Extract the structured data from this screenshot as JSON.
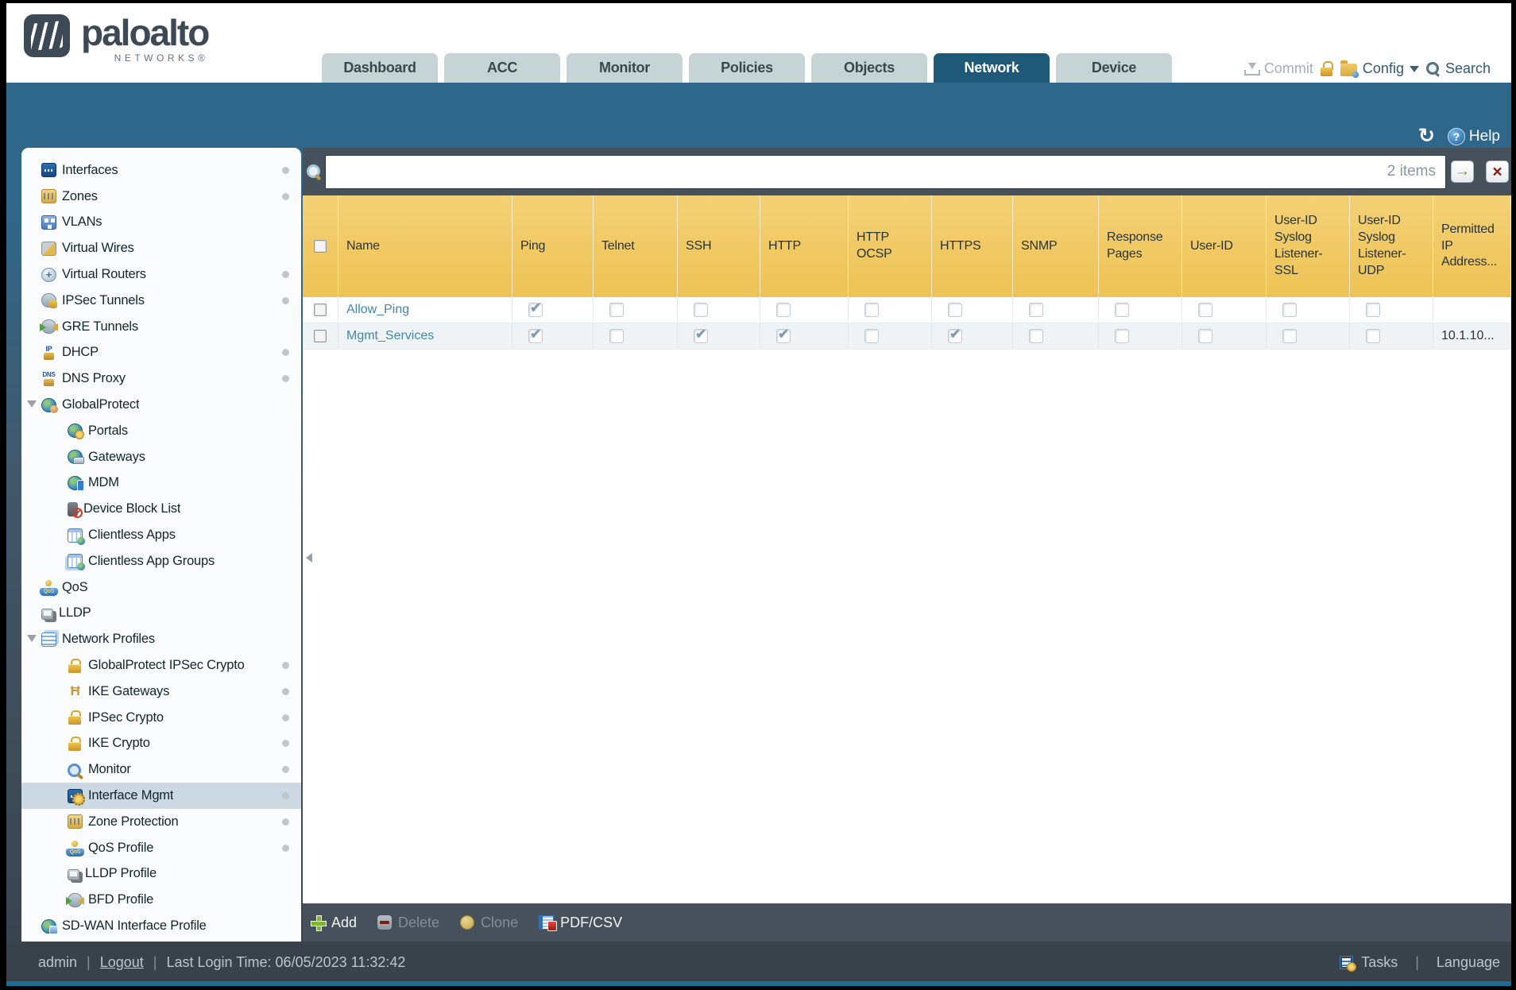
{
  "header": {
    "brand": "paloalto",
    "brand_sub": "NETWORKS®",
    "tabs": [
      {
        "label": "Dashboard",
        "active": false
      },
      {
        "label": "ACC",
        "active": false
      },
      {
        "label": "Monitor",
        "active": false
      },
      {
        "label": "Policies",
        "active": false
      },
      {
        "label": "Objects",
        "active": false
      },
      {
        "label": "Network",
        "active": true
      },
      {
        "label": "Device",
        "active": false
      }
    ],
    "utilities": {
      "commit": "Commit",
      "config": "Config",
      "search": "Search"
    }
  },
  "subheader": {
    "help": "Help"
  },
  "sidebar": {
    "items": [
      {
        "label": "Interfaces",
        "icon": "interfaces",
        "level": 0,
        "dot": true
      },
      {
        "label": "Zones",
        "icon": "zones",
        "level": 0,
        "dot": true
      },
      {
        "label": "VLANs",
        "icon": "vlans",
        "level": 0,
        "dot": false
      },
      {
        "label": "Virtual Wires",
        "icon": "virtual-wires",
        "level": 0,
        "dot": false
      },
      {
        "label": "Virtual Routers",
        "icon": "virtual-routers",
        "level": 0,
        "dot": true
      },
      {
        "label": "IPSec Tunnels",
        "icon": "ipsec-tunnels",
        "level": 0,
        "dot": true
      },
      {
        "label": "GRE Tunnels",
        "icon": "gre-tunnels",
        "level": 0,
        "dot": false
      },
      {
        "label": "DHCP",
        "icon": "dhcp",
        "level": 0,
        "dot": true
      },
      {
        "label": "DNS Proxy",
        "icon": "dns-proxy",
        "level": 0,
        "dot": true
      },
      {
        "label": "GlobalProtect",
        "icon": "globalprotect",
        "level": 0,
        "expander": true,
        "dot": false
      },
      {
        "label": "Portals",
        "icon": "portals",
        "level": 1,
        "dot": false
      },
      {
        "label": "Gateways",
        "icon": "gateways",
        "level": 1,
        "dot": false
      },
      {
        "label": "MDM",
        "icon": "mdm",
        "level": 1,
        "dot": false
      },
      {
        "label": "Device Block List",
        "icon": "device-block-list",
        "level": 1,
        "dot": false
      },
      {
        "label": "Clientless Apps",
        "icon": "clientless-apps",
        "level": 1,
        "dot": false
      },
      {
        "label": "Clientless App Groups",
        "icon": "clientless-app-groups",
        "level": 1,
        "dot": false
      },
      {
        "label": "QoS",
        "icon": "qos",
        "level": 0,
        "dot": false
      },
      {
        "label": "LLDP",
        "icon": "lldp",
        "level": 0,
        "dot": false
      },
      {
        "label": "Network Profiles",
        "icon": "network-profiles",
        "level": 0,
        "expander": true,
        "dot": false
      },
      {
        "label": "GlobalProtect IPSec Crypto",
        "icon": "lock",
        "level": 1,
        "dot": true
      },
      {
        "label": "IKE Gateways",
        "icon": "ike-gateways",
        "level": 1,
        "dot": true
      },
      {
        "label": "IPSec Crypto",
        "icon": "lock",
        "level": 1,
        "dot": true
      },
      {
        "label": "IKE Crypto",
        "icon": "lock",
        "level": 1,
        "dot": true
      },
      {
        "label": "Monitor",
        "icon": "monitor-profile",
        "level": 1,
        "dot": true
      },
      {
        "label": "Interface Mgmt",
        "icon": "interface-mgmt",
        "level": 1,
        "dot": true,
        "selected": true
      },
      {
        "label": "Zone Protection",
        "icon": "zone-protection",
        "level": 1,
        "dot": true
      },
      {
        "label": "QoS Profile",
        "icon": "qos-profile",
        "level": 1,
        "dot": true
      },
      {
        "label": "LLDP Profile",
        "icon": "lldp-profile",
        "level": 1,
        "dot": false
      },
      {
        "label": "BFD Profile",
        "icon": "bfd-profile",
        "level": 1,
        "dot": false
      },
      {
        "label": "SD-WAN Interface Profile",
        "icon": "sdwan",
        "level": 0,
        "dot": false
      }
    ]
  },
  "content": {
    "search": {
      "value": "",
      "count_label": "2 items"
    },
    "table": {
      "columns": [
        "Name",
        "Ping",
        "Telnet",
        "SSH",
        "HTTP",
        "HTTP OCSP",
        "HTTPS",
        "SNMP",
        "Response Pages",
        "User-ID",
        "User-ID Syslog Listener-SSL",
        "User-ID Syslog Listener-UDP",
        "Permitted IP Address..."
      ],
      "rows": [
        {
          "name": "Allow_Ping",
          "checks": [
            true,
            false,
            false,
            false,
            false,
            false,
            false,
            false,
            false,
            false,
            false
          ],
          "permitted_ip": ""
        },
        {
          "name": "Mgmt_Services",
          "checks": [
            true,
            false,
            true,
            true,
            false,
            true,
            false,
            false,
            false,
            false,
            false
          ],
          "permitted_ip": "10.1.10..."
        }
      ]
    },
    "toolbar": [
      {
        "id": "add",
        "label": "Add",
        "enabled": true
      },
      {
        "id": "delete",
        "label": "Delete",
        "enabled": false
      },
      {
        "id": "clone",
        "label": "Clone",
        "enabled": false
      },
      {
        "id": "pdfcsv",
        "label": "PDF/CSV",
        "enabled": true
      }
    ]
  },
  "footer": {
    "user": "admin",
    "logout": "Logout",
    "last_login": "Last Login Time: 06/05/2023 11:32:42",
    "tasks": "Tasks",
    "language": "Language"
  },
  "colors": {
    "header_orange": "#F0C75F",
    "teal_band": "#2F678A",
    "active_tab": "#1E5A78",
    "slate_bar": "#47515B",
    "status_bar": "#39424B",
    "link_blue": "#4187A8",
    "check_blue": "#7D9CB5"
  }
}
